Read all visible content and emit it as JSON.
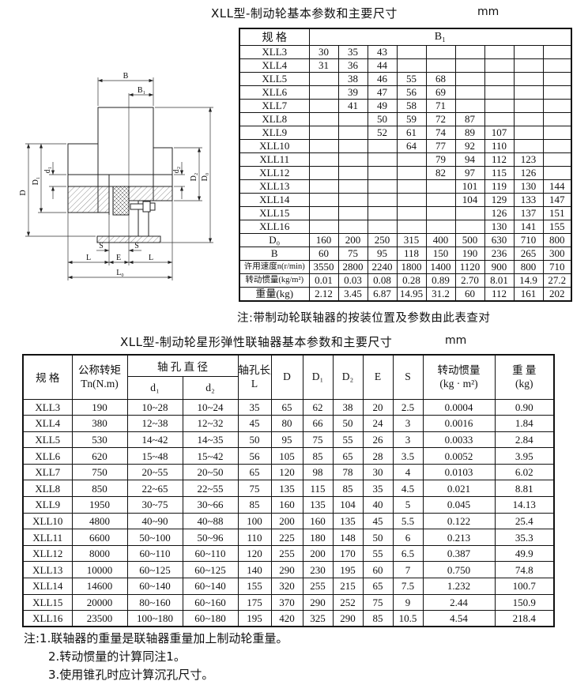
{
  "table1": {
    "title": "XLL型-制动轮基本参数和主要尺寸",
    "unit": "mm",
    "spec_header": "规  格",
    "b1_header": "B₁",
    "rows": [
      {
        "label": "XLL3",
        "values": [
          "30",
          "35",
          "43",
          "",
          "",
          "",
          "",
          "",
          ""
        ]
      },
      {
        "label": "XLL4",
        "values": [
          "31",
          "36",
          "44",
          "",
          "",
          "",
          "",
          "",
          ""
        ]
      },
      {
        "label": "XLL5",
        "values": [
          "",
          "38",
          "46",
          "55",
          "68",
          "",
          "",
          "",
          ""
        ]
      },
      {
        "label": "XLL6",
        "values": [
          "",
          "39",
          "47",
          "56",
          "69",
          "",
          "",
          "",
          ""
        ]
      },
      {
        "label": "XLL7",
        "values": [
          "",
          "41",
          "49",
          "58",
          "71",
          "",
          "",
          "",
          ""
        ]
      },
      {
        "label": "XLL8",
        "values": [
          "",
          "",
          "50",
          "59",
          "72",
          "87",
          "",
          "",
          ""
        ]
      },
      {
        "label": "XLL9",
        "values": [
          "",
          "",
          "52",
          "61",
          "74",
          "89",
          "107",
          "",
          ""
        ]
      },
      {
        "label": "XLL10",
        "values": [
          "",
          "",
          "",
          "64",
          "77",
          "92",
          "110",
          "",
          ""
        ]
      },
      {
        "label": "XLL11",
        "values": [
          "",
          "",
          "",
          "",
          "79",
          "94",
          "112",
          "123",
          ""
        ]
      },
      {
        "label": "XLL12",
        "values": [
          "",
          "",
          "",
          "",
          "82",
          "97",
          "115",
          "126",
          ""
        ]
      },
      {
        "label": "XLL13",
        "values": [
          "",
          "",
          "",
          "",
          "",
          "101",
          "119",
          "130",
          "144"
        ]
      },
      {
        "label": "XLL14",
        "values": [
          "",
          "",
          "",
          "",
          "",
          "104",
          "129",
          "133",
          "147"
        ]
      },
      {
        "label": "XLL15",
        "values": [
          "",
          "",
          "",
          "",
          "",
          "",
          "126",
          "137",
          "151"
        ]
      },
      {
        "label": "XLL16",
        "values": [
          "",
          "",
          "",
          "",
          "",
          "",
          "130",
          "141",
          "155"
        ]
      },
      {
        "label": "D₀",
        "values": [
          "160",
          "200",
          "250",
          "315",
          "400",
          "500",
          "630",
          "710",
          "800"
        ]
      },
      {
        "label": "B",
        "values": [
          "60",
          "75",
          "95",
          "118",
          "150",
          "190",
          "236",
          "265",
          "300"
        ]
      },
      {
        "label": "许用速度n(r/min)",
        "values": [
          "3550",
          "2800",
          "2240",
          "1800",
          "1400",
          "1120",
          "900",
          "800",
          "710"
        ]
      },
      {
        "label": "转动惯量(kg/m²)",
        "values": [
          "0.01",
          "0.03",
          "0.08",
          "0.28",
          "0.89",
          "2.70",
          "8.01",
          "14.9",
          "27.2"
        ]
      },
      {
        "label": "重量(kg)",
        "values": [
          "2.12",
          "3.45",
          "6.87",
          "14.95",
          "31.2",
          "60",
          "112",
          "161",
          "202"
        ]
      }
    ],
    "note": "注:带制动轮联轴器的按装位置及参数由此表查对"
  },
  "table2": {
    "title": "XLL型-制动轮星形弹性联轴器基本参数和主要尺寸",
    "unit": "mm",
    "headers": {
      "spec": "规  格",
      "torque_l1": "公称转矩",
      "torque_l2": "Tn(N.m)",
      "bore_dia": "轴 孔 直 径",
      "d1": "d₁",
      "d2": "d₂",
      "bore_len_l1": "轴孔长度",
      "bore_len_l2": "L",
      "D": "D",
      "D1": "D₁",
      "D2": "D₂",
      "E": "E",
      "S": "S",
      "inertia_l1": "转动惯量",
      "inertia_l2": "(kg · m²)",
      "weight_l1": "重 量",
      "weight_l2": "(kg)"
    },
    "rows": [
      {
        "spec": "XLL3",
        "values": [
          "190",
          "10~28",
          "10~24",
          "35",
          "65",
          "62",
          "38",
          "20",
          "2.5",
          "0.0004",
          "0.90"
        ]
      },
      {
        "spec": "XLL4",
        "values": [
          "380",
          "12~38",
          "12~32",
          "45",
          "80",
          "66",
          "50",
          "24",
          "3",
          "0.0016",
          "1.84"
        ]
      },
      {
        "spec": "XLL5",
        "values": [
          "530",
          "14~42",
          "14~35",
          "50",
          "95",
          "75",
          "55",
          "26",
          "3",
          "0.0033",
          "2.84"
        ]
      },
      {
        "spec": "XLL6",
        "values": [
          "620",
          "15~48",
          "15~42",
          "56",
          "105",
          "85",
          "65",
          "28",
          "3.5",
          "0.0052",
          "3.95"
        ]
      },
      {
        "spec": "XLL7",
        "values": [
          "750",
          "20~55",
          "20~50",
          "65",
          "120",
          "98",
          "78",
          "30",
          "4",
          "0.0103",
          "6.02"
        ]
      },
      {
        "spec": "XLL8",
        "values": [
          "850",
          "22~65",
          "22~55",
          "75",
          "135",
          "115",
          "85",
          "35",
          "4.5",
          "0.021",
          "8.81"
        ]
      },
      {
        "spec": "XLL9",
        "values": [
          "1950",
          "30~75",
          "30~66",
          "85",
          "160",
          "135",
          "104",
          "40",
          "5",
          "0.045",
          "14.13"
        ]
      },
      {
        "spec": "XLL10",
        "values": [
          "4800",
          "40~90",
          "40~88",
          "100",
          "200",
          "160",
          "135",
          "45",
          "5.5",
          "0.122",
          "25.4"
        ]
      },
      {
        "spec": "XLL11",
        "values": [
          "6600",
          "50~100",
          "50~96",
          "110",
          "225",
          "180",
          "148",
          "50",
          "6",
          "0.213",
          "35.3"
        ]
      },
      {
        "spec": "XLL12",
        "values": [
          "8000",
          "60~110",
          "60~110",
          "120",
          "255",
          "200",
          "170",
          "55",
          "6.5",
          "0.387",
          "49.9"
        ]
      },
      {
        "spec": "XLL13",
        "values": [
          "10000",
          "60~125",
          "60~125",
          "140",
          "290",
          "230",
          "195",
          "60",
          "7",
          "0.750",
          "74.8"
        ]
      },
      {
        "spec": "XLL14",
        "values": [
          "14600",
          "60~140",
          "60~140",
          "155",
          "320",
          "255",
          "215",
          "65",
          "7.5",
          "1.232",
          "100.7"
        ]
      },
      {
        "spec": "XLL15",
        "values": [
          "20000",
          "80~160",
          "60~160",
          "175",
          "370",
          "290",
          "252",
          "75",
          "9",
          "2.44",
          "150.9"
        ]
      },
      {
        "spec": "XLL16",
        "values": [
          "23500",
          "100~180",
          "60~180",
          "195",
          "420",
          "325",
          "290",
          "85",
          "10.5",
          "4.54",
          "218.4"
        ]
      }
    ]
  },
  "notes": [
    "注:1.联轴器的重量是联轴器重量加上制动轮重量。",
    "2.转动惯量的计算同注1。",
    "3.使用锥孔时应计算沉孔尺寸。"
  ],
  "drawing": {
    "labels": {
      "B": "B",
      "B1": "B₁",
      "D": "D",
      "D1": "D₁",
      "d1": "d₁",
      "d2": "d₂",
      "D2": "D₂",
      "D0": "D₀",
      "S": "S",
      "E": "E",
      "L": "L",
      "L0": "L₀"
    }
  }
}
